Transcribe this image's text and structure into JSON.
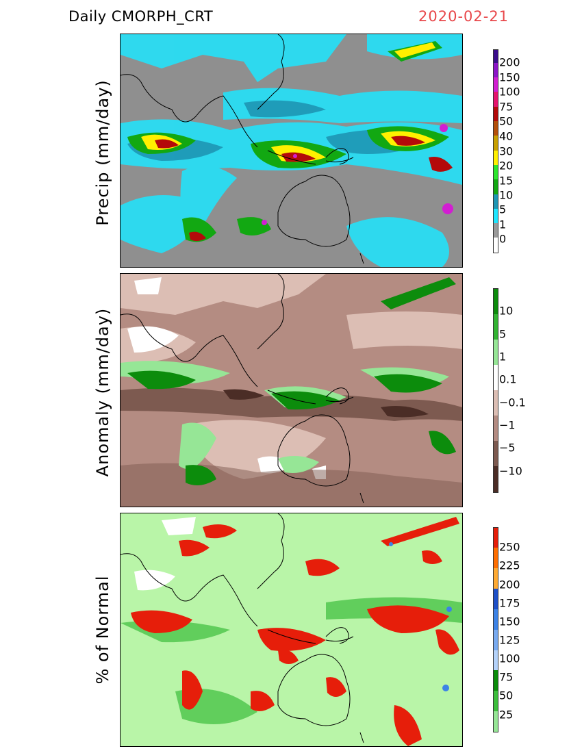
{
  "header": {
    "title": "Daily  CMORPH_CRT",
    "date": "2020-02-21"
  },
  "panels": [
    {
      "id": "precip",
      "ylabel": "Precip  (mm/day)",
      "colorbar": [
        {
          "label": "200",
          "color": "#3a0c8c"
        },
        {
          "label": "150",
          "color": "#8c14c8"
        },
        {
          "label": "100",
          "color": "#d21ed2"
        },
        {
          "label": "75",
          "color": "#e6146e"
        },
        {
          "label": "50",
          "color": "#b40a0a"
        },
        {
          "label": "40",
          "color": "#b4500a"
        },
        {
          "label": "30",
          "color": "#c8a000"
        },
        {
          "label": "20",
          "color": "#fff000"
        },
        {
          "label": "15",
          "color": "#2ce62c"
        },
        {
          "label": "10",
          "color": "#12a812"
        },
        {
          "label": "5",
          "color": "#1e96b4"
        },
        {
          "label": "1",
          "color": "#1ee6ff"
        },
        {
          "label": "0",
          "color": "#9a9a9a"
        }
      ]
    },
    {
      "id": "anomaly",
      "ylabel": "Anomaly  (mm/day)",
      "colorbar": [
        {
          "label": "10",
          "color": "#0c8c0c"
        },
        {
          "label": "5",
          "color": "#32b432"
        },
        {
          "label": "1",
          "color": "#96e696"
        },
        {
          "label": "0.1",
          "color": "#ffffff"
        },
        {
          "label": "−0.1",
          "color": "#dcbeb4"
        },
        {
          "label": "−1",
          "color": "#b48c82"
        },
        {
          "label": "−5",
          "color": "#7d5a50"
        },
        {
          "label": "−10",
          "color": "#4b2d26"
        }
      ]
    },
    {
      "id": "percent",
      "ylabel": "% of Normal",
      "colorbar": [
        {
          "label": "250",
          "color": "#e61e0a"
        },
        {
          "label": "225",
          "color": "#ff6e00"
        },
        {
          "label": "200",
          "color": "#ffaa32"
        },
        {
          "label": "175",
          "color": "#1e50c8"
        },
        {
          "label": "150",
          "color": "#3c82e6"
        },
        {
          "label": "125",
          "color": "#78aaf0"
        },
        {
          "label": "100",
          "color": "#b4d2fa"
        },
        {
          "label": "75",
          "color": "#0a8c0a"
        },
        {
          "label": "50",
          "color": "#3cbe3c"
        },
        {
          "label": "25",
          "color": "#96e696"
        }
      ]
    }
  ]
}
